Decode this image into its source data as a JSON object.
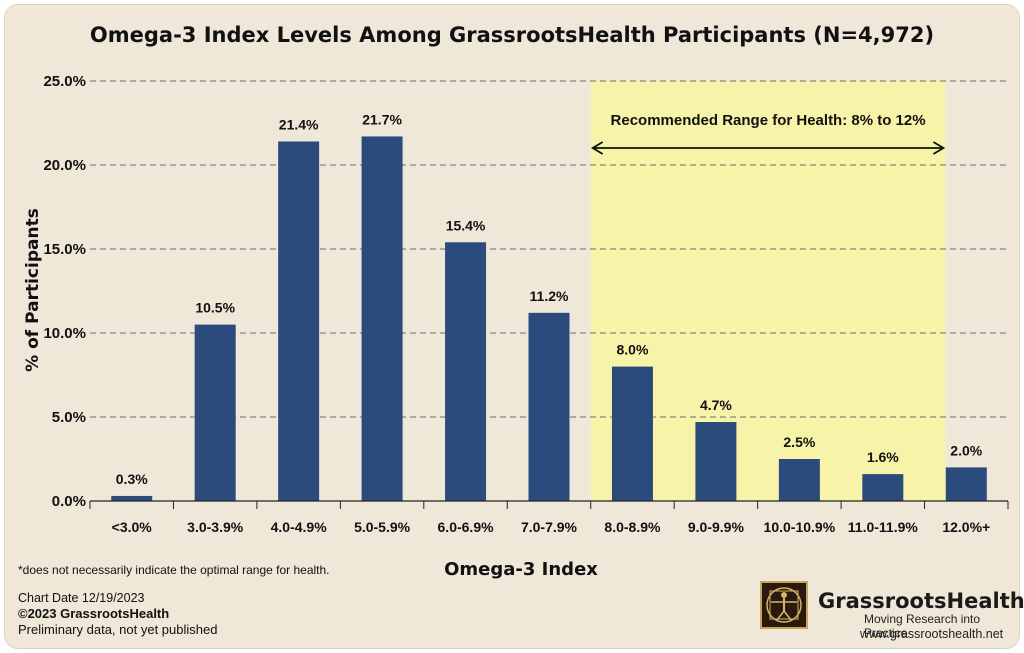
{
  "chart_data": {
    "type": "bar",
    "title": "Omega-3 Index Levels Among GrassrootsHealth Participants (N=4,972)",
    "xlabel": "Omega-3 Index",
    "ylabel": "% of Participants",
    "categories": [
      "<3.0%",
      "3.0-3.9%",
      "4.0-4.9%",
      "5.0-5.9%",
      "6.0-6.9%",
      "7.0-7.9%",
      "8.0-8.9%",
      "9.0-9.9%",
      "10.0-10.9%",
      "11.0-11.9%",
      "12.0%+"
    ],
    "values": [
      0.3,
      10.5,
      21.4,
      21.7,
      15.4,
      11.2,
      8.0,
      4.7,
      2.5,
      1.6,
      2.0
    ],
    "value_labels": [
      "0.3%",
      "10.5%",
      "21.4%",
      "21.7%",
      "15.4%",
      "11.2%",
      "8.0%",
      "4.7%",
      "2.5%",
      "1.6%",
      "2.0%"
    ],
    "ylim": [
      0,
      25
    ],
    "y_ticks": [
      0,
      5,
      10,
      15,
      20,
      25
    ],
    "y_tick_labels": [
      "0.0%",
      "5.0%",
      "10.0%",
      "15.0%",
      "20.0%",
      "25.0%"
    ],
    "grid": true,
    "bar_color": "#2b4b7c",
    "highlight": {
      "label": "Recommended Range for Health: 8% to 12%",
      "from_category": "8.0-8.9%",
      "to_category": "12.0%+",
      "color": "#f7f3a8"
    }
  },
  "footer": {
    "footnote": "*does not necessarily indicate the optimal range for health.",
    "chart_date": "Chart Date 12/19/2023",
    "copyright": "©2023 GrassrootsHealth",
    "preliminary": "Preliminary data, not yet published"
  },
  "logo": {
    "name": "GrassrootsHealth",
    "tagline": "Moving Research into Practice",
    "url": "www.grassrootshealth.net"
  },
  "colors": {
    "background": "#efe7d8",
    "bar": "#2b4b7c",
    "highlight": "#f7f3a8",
    "text": "#111111"
  }
}
